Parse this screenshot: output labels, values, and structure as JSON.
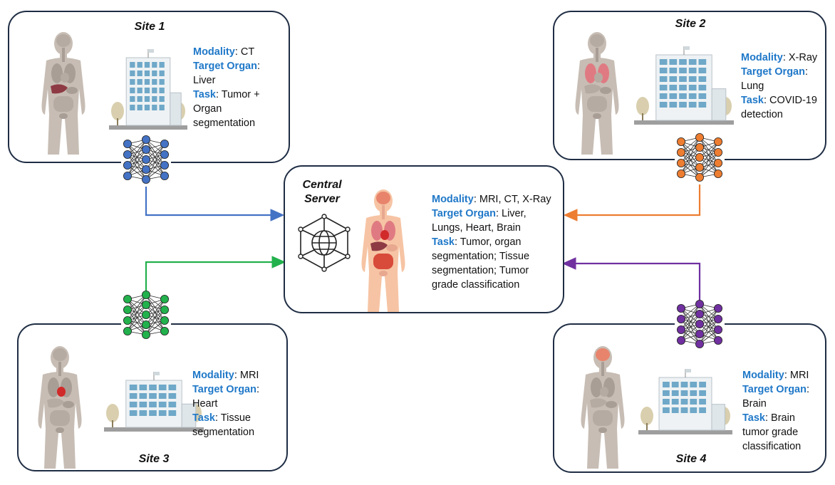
{
  "server": {
    "title_line1": "Central",
    "title_line2": "Server",
    "modality_key": "Modality",
    "modality_value": ": MRI, CT, X-Ray",
    "organ_key": "Target Organ",
    "organ_value_1": ": Liver,",
    "organ_value_2": "Lungs, Heart, Brain",
    "task_key": "Task",
    "task_value_1": ": Tumor, organ",
    "task_value_2": "segmentation; Tissue",
    "task_value_3": "segmentation; Tumor",
    "task_value_4": "grade classification"
  },
  "sites": [
    {
      "title": "Site 1",
      "color": "#4472c4",
      "modality_key": "Modality",
      "modality_value": ": CT",
      "organ_key": "Target Organ",
      "organ_value_1": ":",
      "organ_value_2": "Liver",
      "task_key": "Task",
      "task_value_1": ": Tumor +",
      "task_value_2": "Organ",
      "task_value_3": "segmentation",
      "highlight_organ": "liver"
    },
    {
      "title": "Site 2",
      "color": "#ed7d31",
      "modality_key": "Modality",
      "modality_value": ": X-Ray",
      "organ_key": "Target Organ",
      "organ_value_1": ":",
      "organ_value_2": "Lung",
      "task_key": "Task",
      "task_value_1": ": COVID-19",
      "task_value_2": "detection",
      "highlight_organ": "lungs"
    },
    {
      "title": "Site 3",
      "color": "#22b14c",
      "modality_key": "Modality",
      "modality_value": ": MRI",
      "organ_key": "Target Organ",
      "organ_value_1": ":",
      "organ_value_2": "Heart",
      "task_key": "Task",
      "task_value_1": ": Tissue",
      "task_value_2": "segmentation",
      "highlight_organ": "heart"
    },
    {
      "title": "Site 4",
      "color": "#7030a0",
      "modality_key": "Modality",
      "modality_value": ": MRI",
      "organ_key": "Target Organ",
      "organ_value_1": ":",
      "organ_value_2": "Brain",
      "task_key": "Task",
      "task_value_1": ": Brain",
      "task_value_2": "tumor grade",
      "task_value_3": "classification",
      "highlight_organ": "brain"
    }
  ],
  "icons": {
    "network": "neural-network-icon",
    "globe": "globe-network-icon",
    "hospital": "hospital-building-icon",
    "body": "human-anatomy-icon"
  }
}
